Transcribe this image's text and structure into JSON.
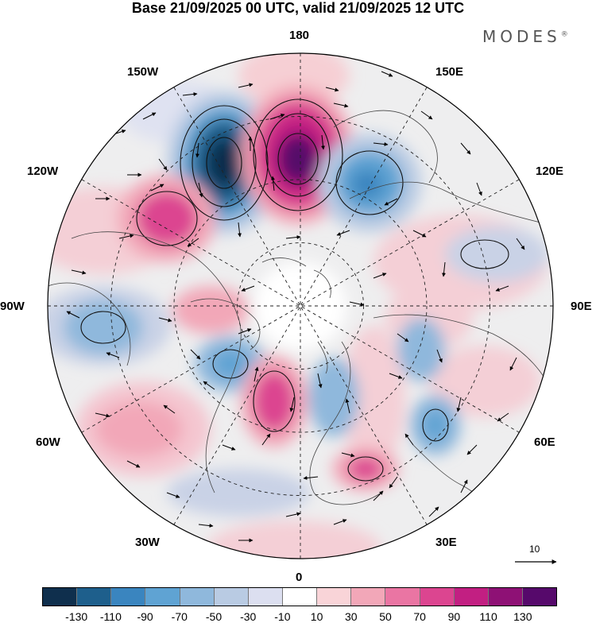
{
  "title": "Base 21/09/2025 00 UTC, valid 21/09/2025 12 UTC",
  "brand": "MODES",
  "brand_mark": "®",
  "meridian_labels": {
    "lon_180": "180",
    "lon_150W": "150W",
    "lon_150E": "150E",
    "lon_120W": "120W",
    "lon_120E": "120E",
    "lon_90W": "90W",
    "lon_90E": "90E",
    "lon_60W": "60W",
    "lon_60E": "60E",
    "lon_30W": "30W",
    "lon_30E": "30E",
    "lon_0": "0"
  },
  "reference_vector_label": "10",
  "colorbar": {
    "colors": [
      "#0f2f4d",
      "#1e5f8c",
      "#3a85bf",
      "#5fa3d3",
      "#8fb8dc",
      "#b9cbe3",
      "#dcdff0",
      "#ffffff",
      "#f9d4d8",
      "#f2a7b8",
      "#ea75a3",
      "#dc4590",
      "#c21f82",
      "#8e1175",
      "#56096b"
    ],
    "ticks": [
      "-130",
      "-110",
      "-90",
      "-70",
      "-50",
      "-30",
      "-10",
      "10",
      "30",
      "50",
      "70",
      "90",
      "110",
      "130"
    ]
  }
}
